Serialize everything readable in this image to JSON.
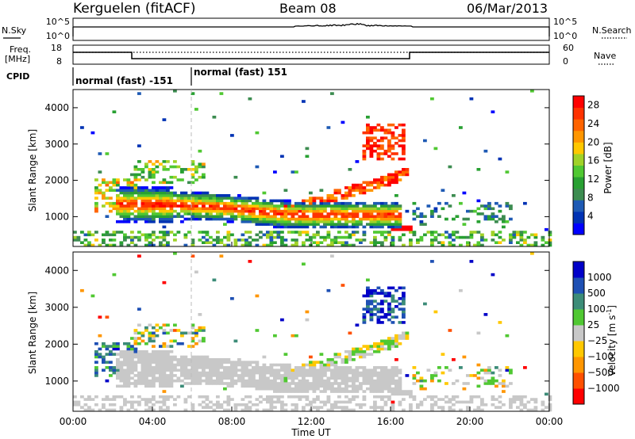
{
  "header": {
    "site": "Kerguelen (fitACF)",
    "beam": "Beam 08",
    "date": "06/Mar/2013"
  },
  "strips": {
    "nsky": {
      "label": "N.Sky",
      "ticks_left": [
        "10^5",
        "10^0"
      ],
      "right_label": "N.Search",
      "ticks_right": [
        "10^5",
        "10^0"
      ]
    },
    "freq": {
      "label_line1": "Freq.",
      "label_line2": "[MHz]",
      "ticks_left": [
        "18",
        "8"
      ],
      "right_label": "Nave",
      "ticks_right": [
        "60",
        "0"
      ]
    },
    "cpid": {
      "label": "CPID",
      "segments": [
        {
          "name": "normal (fast) -151",
          "start_h": 0,
          "end_h": 6
        },
        {
          "name": "normal (fast) 151",
          "start_h": 6,
          "end_h": 24
        }
      ]
    }
  },
  "chart_data": [
    {
      "type": "heatmap",
      "name": "power",
      "xlabel": "",
      "ylabel": "Slant Range [km]",
      "xlim": [
        0,
        24
      ],
      "ylim": [
        180,
        4500
      ],
      "y_ticks": [
        1000,
        2000,
        3000,
        4000
      ],
      "y_ticks_labels": [
        "1000",
        "2000",
        "3000",
        "4000"
      ],
      "colorbar": {
        "label": "Power [dB]",
        "ticks": [
          4,
          8,
          12,
          16,
          20,
          24,
          28
        ],
        "ticks_labels": [
          "4",
          "8",
          "12",
          "16",
          "20",
          "24",
          "28"
        ],
        "range": [
          0,
          30
        ],
        "colors": [
          "#0000ff",
          "#0032b4",
          "#1e5ab4",
          "#3c8c50",
          "#28a032",
          "#50c832",
          "#a0d228",
          "#ffc800",
          "#ff9600",
          "#ff6400",
          "#ff3200",
          "#ff0000"
        ]
      }
    },
    {
      "type": "heatmap",
      "name": "velocity",
      "xlabel": "Time UT",
      "ylabel": "Slant Range [km]",
      "xlim": [
        0,
        24
      ],
      "ylim": [
        180,
        4500
      ],
      "y_ticks": [
        1000,
        2000,
        3000,
        4000
      ],
      "y_ticks_labels": [
        "1000",
        "2000",
        "3000",
        "4000"
      ],
      "x_ticks": [
        0,
        4,
        8,
        12,
        16,
        20,
        24
      ],
      "x_tick_labels": [
        "00:00",
        "04:00",
        "08:00",
        "12:00",
        "16:00",
        "20:00",
        "00:00"
      ],
      "colorbar": {
        "label": "Velocity [m s",
        "label_superscript": "-1",
        "label_suffix": "]",
        "ticks_labels": [
          "1000",
          "500",
          "100",
          "25",
          "−25",
          "−100",
          "−500",
          "−1000"
        ],
        "colors": [
          "#0000c8",
          "#1e50b4",
          "#3c8c78",
          "#50c832",
          "#c8c8c8",
          "#ffc800",
          "#ff9600",
          "#ff5000",
          "#ff0000"
        ]
      }
    }
  ]
}
